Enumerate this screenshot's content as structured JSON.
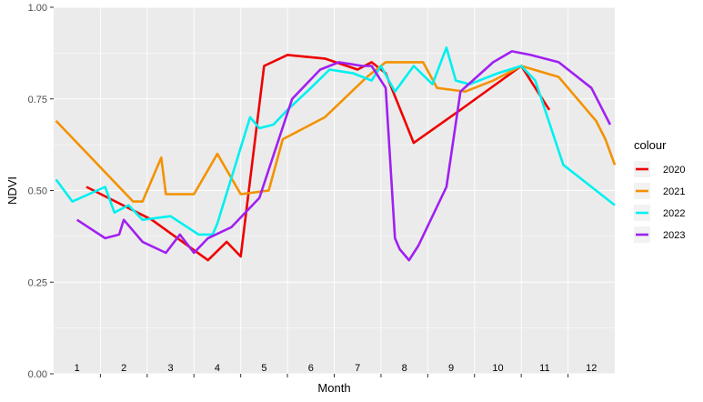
{
  "chart_data": {
    "type": "line",
    "xlabel": "Month",
    "ylabel": "NDVI",
    "ylim": [
      0,
      1
    ],
    "xlim": [
      0.5,
      12.5
    ],
    "y_ticks": [
      "0.00",
      "0.25",
      "0.50",
      "0.75",
      "1.00"
    ],
    "x_tick_labels": [
      "1",
      "2",
      "3",
      "4",
      "5",
      "6",
      "7",
      "8",
      "9",
      "10",
      "11",
      "12"
    ],
    "grid": true,
    "legend": {
      "title": "colour",
      "position": "right"
    },
    "series": [
      {
        "name": "2020",
        "color": "#ee0000",
        "x": [
          1.2,
          2.6,
          3.8,
          4.2,
          4.5,
          5.0,
          5.5,
          6.3,
          7.0,
          7.3,
          7.6,
          8.2,
          9.2,
          10.5,
          11.1
        ],
        "y": [
          0.51,
          0.42,
          0.31,
          0.36,
          0.32,
          0.84,
          0.87,
          0.86,
          0.83,
          0.85,
          0.82,
          0.63,
          0.72,
          0.84,
          0.72
        ]
      },
      {
        "name": "2021",
        "color": "#f39200",
        "x": [
          0.55,
          2.2,
          2.4,
          2.8,
          2.9,
          3.5,
          4.0,
          4.5,
          5.1,
          5.4,
          6.3,
          7.2,
          7.6,
          8.0,
          8.4,
          8.7,
          9.3,
          9.9,
          10.5,
          11.3,
          11.7,
          12.1,
          12.3,
          12.5
        ],
        "y": [
          0.69,
          0.47,
          0.47,
          0.59,
          0.49,
          0.49,
          0.6,
          0.49,
          0.5,
          0.64,
          0.7,
          0.81,
          0.85,
          0.85,
          0.85,
          0.78,
          0.77,
          0.8,
          0.84,
          0.81,
          0.75,
          0.69,
          0.64,
          0.57
        ]
      },
      {
        "name": "2022",
        "color": "#00f0f0",
        "x": [
          0.55,
          0.9,
          1.6,
          1.8,
          2.1,
          2.4,
          3.0,
          3.6,
          3.9,
          4.0,
          4.7,
          4.9,
          5.2,
          5.5,
          6.0,
          6.4,
          6.9,
          7.3,
          7.5,
          7.8,
          8.2,
          8.6,
          8.9,
          9.1,
          9.4,
          10.0,
          10.5,
          10.8,
          11.4,
          11.7,
          12.2,
          12.5
        ],
        "y": [
          0.53,
          0.47,
          0.51,
          0.44,
          0.46,
          0.42,
          0.43,
          0.38,
          0.38,
          0.41,
          0.7,
          0.67,
          0.68,
          0.72,
          0.78,
          0.83,
          0.82,
          0.8,
          0.84,
          0.77,
          0.84,
          0.79,
          0.89,
          0.8,
          0.79,
          0.82,
          0.84,
          0.8,
          0.57,
          0.54,
          0.49,
          0.46
        ]
      },
      {
        "name": "2023",
        "color": "#a020f0",
        "x": [
          1.0,
          1.6,
          1.9,
          2.0,
          2.4,
          2.9,
          3.2,
          3.5,
          3.8,
          4.3,
          4.9,
          5.6,
          6.2,
          6.6,
          7.1,
          7.3,
          7.6,
          7.8,
          7.9,
          8.1,
          8.3,
          8.9,
          9.2,
          9.9,
          10.3,
          10.7,
          11.3,
          11.6,
          12.0,
          12.4
        ],
        "y": [
          0.42,
          0.37,
          0.38,
          0.42,
          0.36,
          0.33,
          0.38,
          0.33,
          0.37,
          0.4,
          0.48,
          0.75,
          0.83,
          0.85,
          0.84,
          0.84,
          0.78,
          0.37,
          0.34,
          0.31,
          0.35,
          0.51,
          0.77,
          0.85,
          0.88,
          0.87,
          0.85,
          0.82,
          0.78,
          0.68
        ]
      }
    ]
  }
}
